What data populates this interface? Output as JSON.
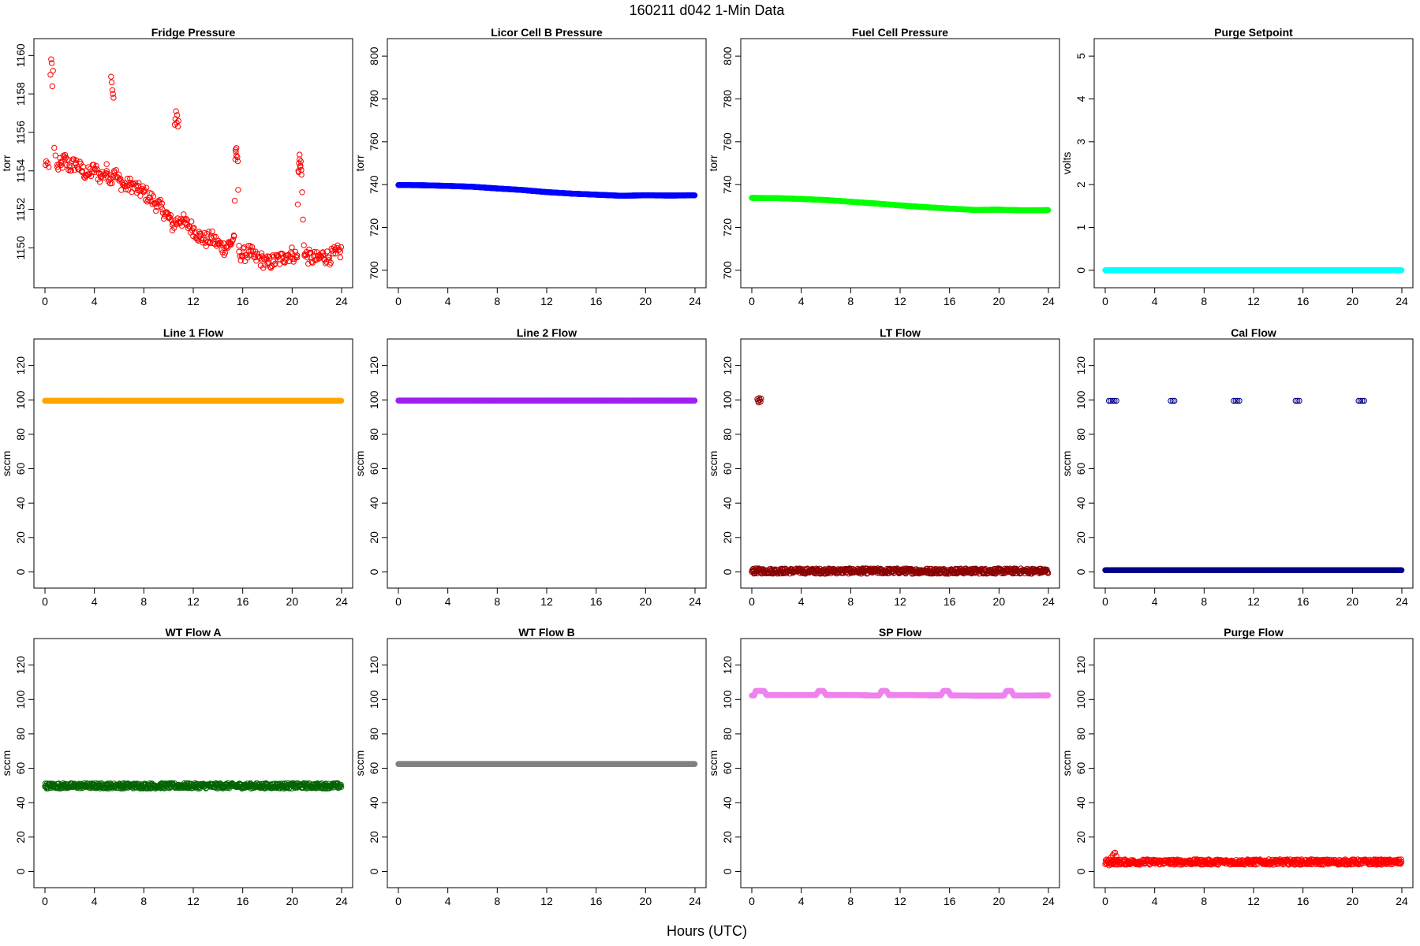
{
  "figure": {
    "title": "160211   d042   1-Min Data",
    "xlabel": "Hours (UTC)"
  },
  "chart_data": [
    {
      "type": "scatter",
      "title": "Fridge Pressure",
      "xlabel": "",
      "ylabel": "torr",
      "xlim": [
        0,
        24
      ],
      "ylim": [
        1148.5,
        1160.3
      ],
      "xticks": [
        0,
        4,
        8,
        12,
        16,
        20,
        24
      ],
      "yticks": [
        1150,
        1152,
        1154,
        1156,
        1158,
        1160
      ],
      "color": "#ff0000",
      "marker": "open-circle",
      "grid": false,
      "series": [
        {
          "x": [
            0.05,
            0.1,
            0.2,
            0.3,
            0.45,
            0.5,
            0.55,
            0.6,
            0.65,
            0.75,
            0.85,
            1.0,
            1.3,
            1.6,
            2.0,
            2.5,
            3.0,
            3.5,
            4.0,
            4.5,
            5.0,
            5.3,
            5.35,
            5.4,
            5.45,
            5.5,
            5.55,
            5.6,
            6.0,
            6.5,
            7.0,
            7.5,
            8.0,
            8.5,
            9.0,
            9.5,
            10.0,
            10.3,
            10.5,
            10.55,
            10.6,
            10.65,
            10.7,
            10.75,
            10.8,
            11.0,
            11.5,
            12.0,
            12.5,
            13.0,
            13.5,
            14.0,
            14.5,
            15.0,
            15.3,
            15.4,
            15.45,
            15.5,
            15.6,
            15.7,
            16.0,
            16.5,
            17.0,
            17.5,
            18.0,
            18.5,
            19.0,
            19.5,
            20.0,
            20.4,
            20.5,
            20.55,
            20.6,
            20.65,
            20.7,
            20.75,
            21.0,
            21.5,
            22.0,
            22.5,
            23.0,
            23.5,
            23.9
          ],
          "y": [
            1154.3,
            1154.5,
            1154.4,
            1154.2,
            1159.0,
            1159.8,
            1159.6,
            1158.4,
            1159.2,
            1155.2,
            1154.8,
            1154.2,
            1154.3,
            1154.6,
            1154.2,
            1154.4,
            1154.0,
            1153.8,
            1154.1,
            1153.7,
            1154.0,
            1153.6,
            1158.9,
            1158.6,
            1158.2,
            1158.0,
            1157.8,
            1154.0,
            1153.5,
            1153.2,
            1153.3,
            1153.0,
            1152.9,
            1152.6,
            1152.3,
            1152.0,
            1151.6,
            1151.2,
            1156.4,
            1156.7,
            1157.1,
            1156.5,
            1156.9,
            1156.3,
            1156.6,
            1151.5,
            1151.2,
            1151.0,
            1150.6,
            1150.4,
            1150.5,
            1150.2,
            1150.0,
            1150.2,
            1150.6,
            1154.6,
            1155.0,
            1154.8,
            1154.5,
            1149.8,
            1149.6,
            1149.8,
            1149.5,
            1149.4,
            1149.2,
            1149.3,
            1149.4,
            1149.6,
            1149.7,
            1149.5,
            1154.0,
            1154.4,
            1154.6,
            1154.2,
            1154.5,
            1153.8,
            1149.6,
            1149.5,
            1149.4,
            1149.6,
            1149.5,
            1149.7,
            1149.8
          ]
        }
      ]
    },
    {
      "type": "scatter",
      "title": "Licor Cell B Pressure",
      "xlabel": "",
      "ylabel": "torr",
      "xlim": [
        0,
        24
      ],
      "ylim": [
        697,
        803
      ],
      "xticks": [
        0,
        4,
        8,
        12,
        16,
        20,
        24
      ],
      "yticks": [
        700,
        720,
        740,
        760,
        780,
        800
      ],
      "color": "#0000ff",
      "marker": "filled-dense",
      "grid": false,
      "series": [
        {
          "x": [
            0,
            2,
            4,
            6,
            8,
            10,
            12,
            14,
            16,
            18,
            20,
            22,
            24
          ],
          "y": [
            739.8,
            739.7,
            739.4,
            739.0,
            738.2,
            737.5,
            736.5,
            735.8,
            735.3,
            734.8,
            735.0,
            734.9,
            735.0
          ]
        }
      ]
    },
    {
      "type": "scatter",
      "title": "Fuel Cell Pressure",
      "xlabel": "",
      "ylabel": "torr",
      "xlim": [
        0,
        24
      ],
      "ylim": [
        697,
        803
      ],
      "xticks": [
        0,
        4,
        8,
        12,
        16,
        20,
        24
      ],
      "yticks": [
        700,
        720,
        740,
        760,
        780,
        800
      ],
      "color": "#00ff00",
      "marker": "filled-dense",
      "grid": false,
      "series": [
        {
          "x": [
            0,
            2,
            4,
            6,
            8,
            10,
            12,
            14,
            16,
            18,
            20,
            22,
            24
          ],
          "y": [
            733.8,
            733.7,
            733.3,
            732.8,
            732.0,
            731.2,
            730.3,
            729.5,
            728.8,
            728.2,
            728.3,
            728.0,
            728.1
          ]
        }
      ]
    },
    {
      "type": "scatter",
      "title": "Purge Setpoint",
      "xlabel": "",
      "ylabel": "volts",
      "xlim": [
        0,
        24
      ],
      "ylim": [
        -0.15,
        5.15
      ],
      "xticks": [
        0,
        4,
        8,
        12,
        16,
        20,
        24
      ],
      "yticks": [
        0,
        1,
        2,
        3,
        4,
        5
      ],
      "color": "#00ffff",
      "marker": "filled-dense",
      "grid": false,
      "series": [
        {
          "x": [
            0,
            24
          ],
          "y": [
            0,
            0
          ]
        }
      ]
    },
    {
      "type": "scatter",
      "title": "Line 1 Flow",
      "xlabel": "",
      "ylabel": "sccm",
      "xlim": [
        0,
        24
      ],
      "ylim": [
        -3,
        129
      ],
      "xticks": [
        0,
        4,
        8,
        12,
        16,
        20,
        24
      ],
      "yticks": [
        0,
        20,
        40,
        60,
        80,
        100,
        120
      ],
      "color": "#ffa500",
      "marker": "filled-dense",
      "grid": false,
      "series": [
        {
          "x": [
            0,
            24
          ],
          "y": [
            99.5,
            99.5
          ]
        }
      ]
    },
    {
      "type": "scatter",
      "title": "Line 2 Flow",
      "xlabel": "",
      "ylabel": "sccm",
      "xlim": [
        0,
        24
      ],
      "ylim": [
        -3,
        129
      ],
      "xticks": [
        0,
        4,
        8,
        12,
        16,
        20,
        24
      ],
      "yticks": [
        0,
        20,
        40,
        60,
        80,
        100,
        120
      ],
      "color": "#a020f0",
      "marker": "filled-dense",
      "grid": false,
      "series": [
        {
          "x": [
            0,
            24
          ],
          "y": [
            99.6,
            99.6
          ]
        }
      ]
    },
    {
      "type": "scatter",
      "title": "LT Flow",
      "xlabel": "",
      "ylabel": "sccm",
      "xlim": [
        0,
        24
      ],
      "ylim": [
        -3,
        129
      ],
      "xticks": [
        0,
        4,
        8,
        12,
        16,
        20,
        24
      ],
      "yticks": [
        0,
        20,
        40,
        60,
        80,
        100,
        120
      ],
      "color": "#8b0000",
      "marker": "open-circle-band",
      "grid": false,
      "series": [
        {
          "name": "",
          "x": [
            0,
            24
          ],
          "y": [
            0.5,
            0.5
          ]
        },
        {
          "name": "",
          "x": [
            0.45,
            0.5,
            0.55,
            0.6,
            0.65,
            0.7,
            0.75
          ],
          "y": [
            100.5,
            99.5,
            98.5,
            101.0,
            100.0,
            99.0,
            100.8
          ]
        }
      ]
    },
    {
      "type": "scatter",
      "title": "Cal Flow",
      "xlabel": "",
      "ylabel": "sccm",
      "xlim": [
        0,
        24
      ],
      "ylim": [
        -3,
        129
      ],
      "xticks": [
        0,
        4,
        8,
        12,
        16,
        20,
        24
      ],
      "yticks": [
        0,
        20,
        40,
        60,
        80,
        100,
        120
      ],
      "color": "#00008b",
      "marker": "open-circle-dense",
      "grid": false,
      "series": [
        {
          "name": "",
          "x": [
            0,
            24
          ],
          "y": [
            1,
            1
          ]
        },
        {
          "name": "",
          "x": [
            0.3,
            0.45,
            0.6,
            0.75,
            0.9,
            5.3,
            5.45,
            5.6,
            10.4,
            10.55,
            10.7,
            10.85,
            15.4,
            15.55,
            15.7,
            20.5,
            20.65,
            20.8,
            20.95
          ],
          "y": [
            99.5,
            99.5,
            99.5,
            99.5,
            99.5,
            99.5,
            99.5,
            99.5,
            99.5,
            99.5,
            99.5,
            99.5,
            99.5,
            99.5,
            99.5,
            99.5,
            99.5,
            99.5,
            99.5
          ]
        }
      ]
    },
    {
      "type": "scatter",
      "title": "WT Flow A",
      "xlabel": "",
      "ylabel": "sccm",
      "xlim": [
        0,
        24
      ],
      "ylim": [
        -3,
        129
      ],
      "xticks": [
        0,
        4,
        8,
        12,
        16,
        20,
        24
      ],
      "yticks": [
        0,
        20,
        40,
        60,
        80,
        100,
        120
      ],
      "color": "#006400",
      "marker": "open-circle-band",
      "grid": false,
      "series": [
        {
          "x": [
            0,
            24
          ],
          "y": [
            49.8,
            49.8
          ]
        }
      ]
    },
    {
      "type": "scatter",
      "title": "WT Flow B",
      "xlabel": "",
      "ylabel": "sccm",
      "xlim": [
        0,
        24
      ],
      "ylim": [
        -3,
        129
      ],
      "xticks": [
        0,
        4,
        8,
        12,
        16,
        20,
        24
      ],
      "yticks": [
        0,
        20,
        40,
        60,
        80,
        100,
        120
      ],
      "color": "#808080",
      "marker": "filled-dense",
      "grid": false,
      "series": [
        {
          "x": [
            0,
            24
          ],
          "y": [
            62.5,
            62.5
          ]
        }
      ]
    },
    {
      "type": "scatter",
      "title": "SP Flow",
      "xlabel": "",
      "ylabel": "sccm",
      "xlim": [
        0,
        24
      ],
      "ylim": [
        -3,
        129
      ],
      "xticks": [
        0,
        4,
        8,
        12,
        16,
        20,
        24
      ],
      "yticks": [
        0,
        20,
        40,
        60,
        80,
        100,
        120
      ],
      "color": "#ee82ee",
      "marker": "filled-dense",
      "grid": false,
      "series": [
        {
          "x": [
            0.0,
            0.2,
            0.3,
            0.5,
            0.7,
            0.9,
            1.0,
            1.2,
            3,
            5,
            5.2,
            5.4,
            5.6,
            5.8,
            6.0,
            8,
            10,
            10.3,
            10.5,
            10.7,
            10.9,
            11.1,
            13,
            15,
            15.3,
            15.5,
            15.7,
            15.9,
            16.1,
            18,
            20,
            20.4,
            20.6,
            20.8,
            21.0,
            21.2,
            22,
            24
          ],
          "y": [
            102.3,
            102.3,
            105.0,
            105.0,
            105.0,
            105.0,
            105.0,
            102.5,
            102.5,
            102.6,
            102.6,
            105.0,
            105.0,
            105.0,
            102.6,
            102.6,
            102.3,
            102.3,
            105.0,
            105.0,
            105.0,
            102.5,
            102.5,
            102.4,
            102.4,
            105.0,
            105.0,
            105.0,
            102.4,
            102.2,
            102.2,
            102.2,
            105.0,
            105.0,
            105.0,
            102.3,
            102.3,
            102.4
          ]
        }
      ]
    },
    {
      "type": "scatter",
      "title": "Purge Flow",
      "xlabel": "",
      "ylabel": "sccm",
      "xlim": [
        0,
        24
      ],
      "ylim": [
        -3,
        129
      ],
      "xticks": [
        0,
        4,
        8,
        12,
        16,
        20,
        24
      ],
      "yticks": [
        0,
        20,
        40,
        60,
        80,
        100,
        120
      ],
      "color": "#ff0000",
      "marker": "open-circle-band",
      "grid": false,
      "series": [
        {
          "name": "",
          "x": [
            0,
            24
          ],
          "y": [
            5.5,
            5.5
          ]
        },
        {
          "name": "",
          "x": [
            0.3,
            0.45,
            0.6,
            0.7,
            0.8,
            0.9
          ],
          "y": [
            3.5,
            8.0,
            9.5,
            10.5,
            11.0,
            9.0
          ]
        }
      ]
    }
  ]
}
